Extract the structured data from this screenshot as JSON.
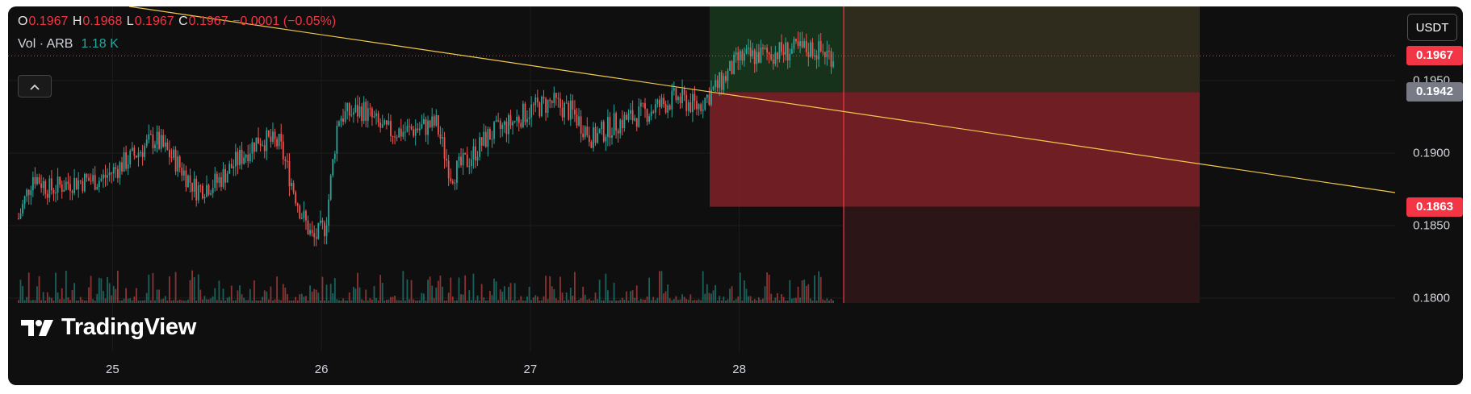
{
  "symbol": {
    "ohlc": [
      {
        "label": "O",
        "value": "0.1967"
      },
      {
        "label": "H",
        "value": "0.1968"
      },
      {
        "label": "L",
        "value": "0.1967"
      },
      {
        "label": "C",
        "value": "0.1967"
      }
    ],
    "change": "−0.0001 (−0.05%)",
    "volume_label": "Vol · ARB",
    "volume_value": "1.18 K",
    "collapse_icon": "chevron-up-icon"
  },
  "currency": "USDT",
  "watermark": "TradingView",
  "time_axis": [
    "25",
    "26",
    "27",
    "28"
  ],
  "price_axis": [
    "0.1950",
    "0.1900",
    "0.1850",
    "0.1800"
  ],
  "price_tags": {
    "last": {
      "value": "0.1967",
      "color": "#f23645"
    },
    "entry": {
      "value": "0.1942",
      "color": "#787b86"
    },
    "stop": {
      "value": "0.1863",
      "color": "#f23645"
    }
  },
  "colors": {
    "up": "#26a69a",
    "down": "#ef5350",
    "trendline": "#f2c94c",
    "profit_zone": "#1e4620",
    "loss_zone": "#8b2229"
  },
  "chart_data": {
    "type": "candlestick",
    "series": [
      {
        "name": "ARB"
      }
    ],
    "y_range": [
      0.18,
      0.2
    ],
    "x_ticks": [
      "25",
      "26",
      "27",
      "28"
    ],
    "last_price": 0.1967,
    "position": {
      "entry": 0.1942,
      "stop": 0.1863,
      "target": "above chart top"
    },
    "close_path": [
      [
        24.55,
        0.1855
      ],
      [
        24.62,
        0.1885
      ],
      [
        24.7,
        0.1875
      ],
      [
        24.8,
        0.188
      ],
      [
        24.95,
        0.1882
      ],
      [
        25.1,
        0.1898
      ],
      [
        25.2,
        0.191
      ],
      [
        25.3,
        0.1895
      ],
      [
        25.4,
        0.1875
      ],
      [
        25.5,
        0.188
      ],
      [
        25.6,
        0.1895
      ],
      [
        25.7,
        0.191
      ],
      [
        25.8,
        0.1906
      ],
      [
        25.9,
        0.186
      ],
      [
        25.96,
        0.184
      ],
      [
        26.02,
        0.185
      ],
      [
        26.08,
        0.1925
      ],
      [
        26.2,
        0.193
      ],
      [
        26.3,
        0.1915
      ],
      [
        26.4,
        0.1915
      ],
      [
        26.55,
        0.192
      ],
      [
        26.62,
        0.1885
      ],
      [
        26.7,
        0.1895
      ],
      [
        26.8,
        0.1912
      ],
      [
        26.9,
        0.192
      ],
      [
        27.0,
        0.193
      ],
      [
        27.1,
        0.1935
      ],
      [
        27.2,
        0.1928
      ],
      [
        27.3,
        0.191
      ],
      [
        27.4,
        0.192
      ],
      [
        27.55,
        0.1928
      ],
      [
        27.7,
        0.1938
      ],
      [
        27.8,
        0.1932
      ],
      [
        27.92,
        0.195
      ],
      [
        28.0,
        0.1965
      ],
      [
        28.2,
        0.197
      ],
      [
        28.35,
        0.1972
      ],
      [
        28.45,
        0.1967
      ]
    ]
  }
}
